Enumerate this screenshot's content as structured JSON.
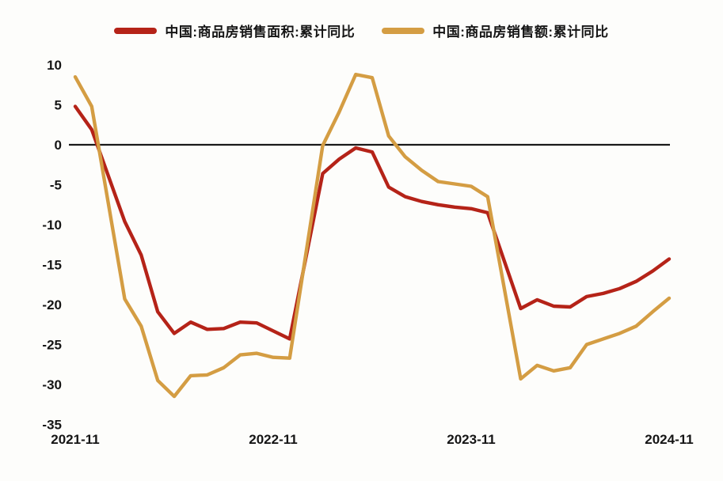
{
  "legend": {
    "series1_label": "中国:商品房销售面积:累计同比",
    "series2_label": "中国:商品房销售额:累计同比"
  },
  "colors": {
    "sales_area_line": "#b52318",
    "sales_value_line": "#d49d43",
    "zero_line": "#1a1a1a",
    "text": "#151515",
    "background": "#fdfdfb"
  },
  "chart_data": {
    "type": "line",
    "title": "",
    "xlabel": "",
    "ylabel": "",
    "ylim": [
      -35,
      10
    ],
    "grid": false,
    "legend_position": "top",
    "x": [
      "2021-11",
      "2021-12",
      "2022-02",
      "2022-03",
      "2022-04",
      "2022-05",
      "2022-06",
      "2022-07",
      "2022-08",
      "2022-09",
      "2022-10",
      "2022-11",
      "2022-12",
      "2023-02",
      "2023-03",
      "2023-04",
      "2023-05",
      "2023-06",
      "2023-07",
      "2023-08",
      "2023-09",
      "2023-10",
      "2023-11",
      "2023-12",
      "2024-02",
      "2024-03",
      "2024-04",
      "2024-05",
      "2024-06",
      "2024-07",
      "2024-08",
      "2024-09",
      "2024-10",
      "2024-11"
    ],
    "x_months": [
      0,
      1,
      3,
      4,
      5,
      6,
      7,
      8,
      9,
      10,
      11,
      12,
      13,
      15,
      16,
      17,
      18,
      19,
      20,
      21,
      22,
      23,
      24,
      25,
      27,
      28,
      29,
      30,
      31,
      32,
      33,
      34,
      35,
      36
    ],
    "series": [
      {
        "name": "中国:商品房销售面积:累计同比",
        "color": "#b52318",
        "values": [
          4.8,
          1.9,
          -9.6,
          -13.8,
          -20.9,
          -23.6,
          -22.2,
          -23.1,
          -23.0,
          -22.2,
          -22.3,
          -23.3,
          -24.3,
          -3.6,
          -1.8,
          -0.4,
          -0.9,
          -5.3,
          -6.5,
          -7.1,
          -7.5,
          -7.8,
          -8.0,
          -8.5,
          -20.5,
          -19.4,
          -20.2,
          -20.3,
          -19.0,
          -18.6,
          -18.0,
          -17.1,
          -15.8,
          -14.3
        ]
      },
      {
        "name": "中国:商品房销售额:累计同比",
        "color": "#d49d43",
        "values": [
          8.5,
          4.8,
          -19.3,
          -22.7,
          -29.5,
          -31.5,
          -28.9,
          -28.8,
          -27.9,
          -26.3,
          -26.1,
          -26.6,
          -26.7,
          -0.1,
          4.1,
          8.8,
          8.4,
          1.1,
          -1.5,
          -3.2,
          -4.6,
          -4.9,
          -5.2,
          -6.5,
          -29.3,
          -27.6,
          -28.3,
          -27.9,
          -25.0,
          -24.3,
          -23.6,
          -22.7,
          -20.9,
          -19.2
        ]
      }
    ],
    "y_ticks": [
      10,
      5,
      0,
      -5,
      -10,
      -15,
      -20,
      -25,
      -30,
      -35
    ],
    "x_ticks": [
      {
        "label": "2021-11",
        "month": 0
      },
      {
        "label": "2022-11",
        "month": 12
      },
      {
        "label": "2023-11",
        "month": 24
      },
      {
        "label": "2024-11",
        "month": 36
      }
    ]
  }
}
